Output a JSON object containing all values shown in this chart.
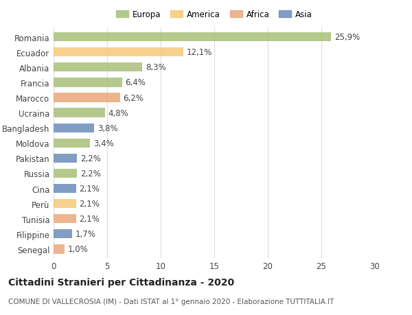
{
  "title_bold": "Cittadini Stranieri per Cittadinanza - 2020",
  "title_sub": "COMUNE DI VALLECROSIA (IM) - Dati ISTAT al 1° gennaio 2020 - Elaborazione TUTTITALIA.IT",
  "legend_labels": [
    "Europa",
    "America",
    "Africa",
    "Asia"
  ],
  "legend_colors": [
    "#a8c07a",
    "#f5c97a",
    "#e8a87c",
    "#6b8cba"
  ],
  "countries": [
    "Romania",
    "Ecuador",
    "Albania",
    "Francia",
    "Marocco",
    "Ucraina",
    "Bangladesh",
    "Moldova",
    "Pakistan",
    "Russia",
    "Cina",
    "Perù",
    "Tunisia",
    "Filippine",
    "Senegal"
  ],
  "values": [
    25.9,
    12.1,
    8.3,
    6.4,
    6.2,
    4.8,
    3.8,
    3.4,
    2.2,
    2.2,
    2.1,
    2.1,
    2.1,
    1.7,
    1.0
  ],
  "labels": [
    "25,9%",
    "12,1%",
    "8,3%",
    "6,4%",
    "6,2%",
    "4,8%",
    "3,8%",
    "3,4%",
    "2,2%",
    "2,2%",
    "2,1%",
    "2,1%",
    "2,1%",
    "1,7%",
    "1,0%"
  ],
  "bar_colors": [
    "#a8c07a",
    "#f5c97a",
    "#a8c07a",
    "#a8c07a",
    "#e8a87c",
    "#a8c07a",
    "#6b8cba",
    "#a8c07a",
    "#6b8cba",
    "#a8c07a",
    "#6b8cba",
    "#f5c97a",
    "#e8a87c",
    "#6b8cba",
    "#e8a87c"
  ],
  "xlim": [
    0,
    30
  ],
  "xticks": [
    0,
    5,
    10,
    15,
    20,
    25,
    30
  ],
  "background_color": "#ffffff",
  "grid_color": "#dddddd",
  "bar_height": 0.6,
  "label_fontsize": 8.5,
  "tick_fontsize": 8.5,
  "title_fontsize": 10,
  "sub_fontsize": 7.5
}
